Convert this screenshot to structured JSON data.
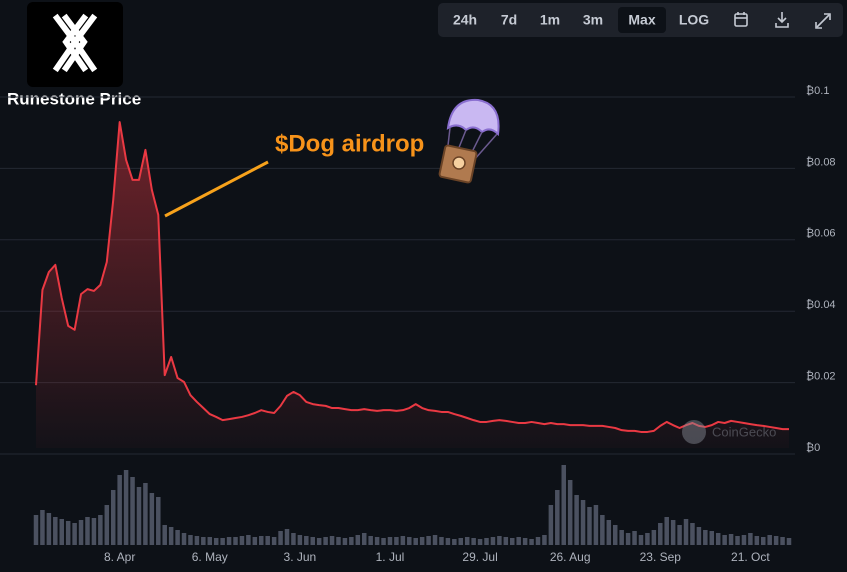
{
  "ui": {
    "buttons": [
      "24h",
      "7d",
      "1m",
      "3m",
      "Max",
      "LOG"
    ],
    "active_button": "Max"
  },
  "chart_data": {
    "type": "line",
    "title": "Runestone Price",
    "annotation": "$Dog airdrop",
    "watermark": "CoinGecko",
    "categories": [
      null,
      null,
      null,
      null,
      null,
      null,
      null,
      null,
      null,
      null,
      null,
      null,
      null,
      "8. Apr",
      null,
      null,
      null,
      null,
      null,
      null,
      null,
      null,
      null,
      null,
      null,
      null,
      null,
      "6. May",
      null,
      null,
      null,
      null,
      null,
      null,
      null,
      null,
      null,
      null,
      null,
      null,
      null,
      "3. Jun",
      null,
      null,
      null,
      null,
      null,
      null,
      null,
      null,
      null,
      null,
      null,
      null,
      null,
      "1. Jul",
      null,
      null,
      null,
      null,
      null,
      null,
      null,
      null,
      null,
      null,
      null,
      null,
      null,
      "29. Jul",
      null,
      null,
      null,
      null,
      null,
      null,
      null,
      null,
      null,
      null,
      null,
      null,
      null,
      "26. Aug",
      null,
      null,
      null,
      null,
      null,
      null,
      null,
      null,
      null,
      null,
      null,
      null,
      null,
      "23. Sep",
      null,
      null,
      null,
      null,
      null,
      null,
      null,
      null,
      null,
      null,
      null,
      null,
      null,
      "21. Oct",
      null,
      null,
      null,
      null,
      null,
      null
    ],
    "series": [
      {
        "name": "Price",
        "color": "#ea3943",
        "values": [
          0.0176,
          0.0443,
          0.0493,
          0.0513,
          0.042,
          0.0342,
          0.0331,
          0.0431,
          0.0445,
          0.044,
          0.0457,
          0.0521,
          0.0695,
          0.0913,
          0.0807,
          0.0751,
          0.0751,
          0.0835,
          0.0723,
          0.0653,
          0.0204,
          0.0255,
          0.0196,
          0.0185,
          0.0148,
          0.0129,
          0.0112,
          0.0095,
          0.0087,
          0.0078,
          0.0081,
          0.0084,
          0.0087,
          0.0092,
          0.0098,
          0.0106,
          0.0101,
          0.0098,
          0.0118,
          0.0146,
          0.0157,
          0.0148,
          0.0129,
          0.0123,
          0.012,
          0.0118,
          0.0112,
          0.0112,
          0.0109,
          0.0106,
          0.0106,
          0.0109,
          0.0106,
          0.0104,
          0.0106,
          0.0106,
          0.0104,
          0.0106,
          0.0112,
          0.0123,
          0.0112,
          0.0106,
          0.0104,
          0.0101,
          0.0101,
          0.0095,
          0.009,
          0.0084,
          0.0078,
          0.0073,
          0.0073,
          0.0076,
          0.0078,
          0.0076,
          0.0073,
          0.007,
          0.007,
          0.0073,
          0.007,
          0.0067,
          0.007,
          0.0067,
          0.0067,
          0.0064,
          0.0064,
          0.0064,
          0.0062,
          0.0062,
          0.0062,
          0.0059,
          0.0056,
          0.005,
          0.0048,
          0.0048,
          0.0045,
          0.0045,
          0.0048,
          0.0062,
          0.0073,
          0.0064,
          0.0056,
          0.0064,
          0.007,
          0.0062,
          0.0059,
          0.0064,
          0.0073,
          0.007,
          0.0076,
          0.0073,
          0.007,
          0.0067,
          0.0064,
          0.0062,
          0.0059,
          0.0056,
          0.0053,
          0.0053
        ]
      }
    ],
    "volume": {
      "color": "#4b5160",
      "ylim": [
        0,
        100
      ],
      "values": [
        30,
        35,
        32,
        28,
        26,
        24,
        22,
        25,
        28,
        27,
        30,
        40,
        55,
        70,
        75,
        68,
        58,
        62,
        52,
        48,
        20,
        18,
        15,
        12,
        10,
        9,
        8,
        8,
        7,
        7,
        8,
        8,
        9,
        10,
        8,
        9,
        9,
        8,
        14,
        16,
        12,
        10,
        9,
        8,
        7,
        8,
        9,
        8,
        7,
        8,
        10,
        12,
        9,
        8,
        7,
        8,
        8,
        9,
        8,
        7,
        8,
        9,
        10,
        8,
        7,
        6,
        7,
        8,
        7,
        6,
        7,
        8,
        9,
        8,
        7,
        8,
        7,
        6,
        8,
        10,
        40,
        55,
        80,
        65,
        50,
        45,
        38,
        40,
        30,
        25,
        20,
        15,
        12,
        14,
        10,
        12,
        15,
        22,
        28,
        25,
        20,
        26,
        22,
        18,
        15,
        14,
        12,
        10,
        11,
        9,
        10,
        12,
        9,
        8,
        10,
        9,
        8,
        7
      ]
    },
    "ylim": [
      0,
      0.1
    ],
    "yticks": [
      {
        "value": 0,
        "label": "₿0"
      },
      {
        "value": 0.02,
        "label": "₿0.02"
      },
      {
        "value": 0.04,
        "label": "₿0.04"
      },
      {
        "value": 0.06,
        "label": "₿0.06"
      },
      {
        "value": 0.08,
        "label": "₿0.08"
      },
      {
        "value": 0.1,
        "label": "₿0.1"
      }
    ],
    "grid": true
  }
}
